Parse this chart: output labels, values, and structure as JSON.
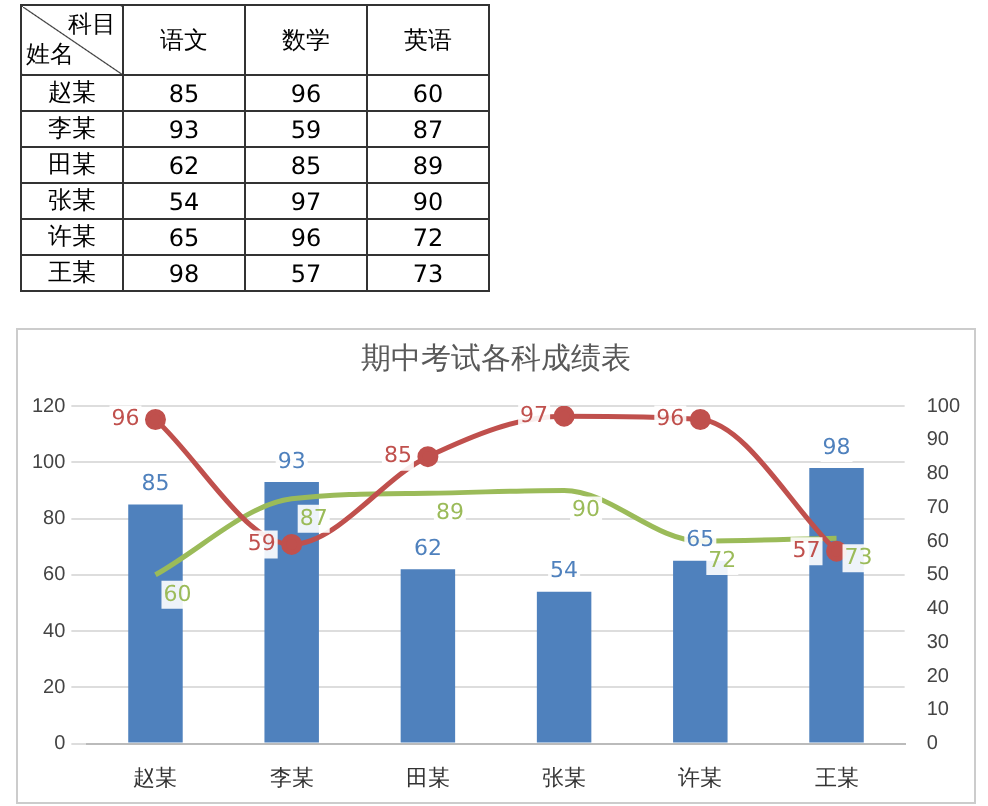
{
  "chart_data": [
    {
      "type": "other",
      "data_labels": true,
      "annotations": [
        "科目",
        "姓名"
      ],
      "categories": [
        "赵某",
        "李某",
        "田某",
        "张某",
        "许某",
        "王某"
      ],
      "series": [
        {
          "name": "语文",
          "values": [
            85,
            93,
            62,
            54,
            65,
            98
          ]
        },
        {
          "name": "数学",
          "values": [
            96,
            59,
            85,
            97,
            96,
            57
          ]
        },
        {
          "name": "英语",
          "values": [
            60,
            87,
            89,
            90,
            72,
            73
          ]
        }
      ]
    },
    {
      "type": "bar",
      "title": "期中考试各科成绩表",
      "categories": [
        "赵某",
        "李某",
        "田某",
        "张某",
        "许某",
        "王某"
      ],
      "series": [
        {
          "type": "bar",
          "color": "#4f81bd",
          "values": [
            85,
            93,
            62,
            54,
            65,
            98
          ]
        },
        {
          "type": "line",
          "axis": "y2",
          "color": "#c0504d",
          "marker": "circle",
          "values": [
            96,
            59,
            85,
            97,
            96,
            57
          ]
        },
        {
          "type": "line",
          "color": "#9bbb59",
          "marker": "none",
          "values": [
            60,
            87,
            89,
            90,
            72,
            73
          ]
        }
      ],
      "ylim": [
        0,
        120
      ],
      "yticks": [
        0,
        20,
        40,
        60,
        80,
        100,
        120
      ],
      "y2lim": [
        0,
        100
      ],
      "y2ticks": [
        0,
        10,
        20,
        30,
        40,
        50,
        60,
        70,
        80,
        90,
        100
      ],
      "grid": "y",
      "data_labels": true
    }
  ]
}
